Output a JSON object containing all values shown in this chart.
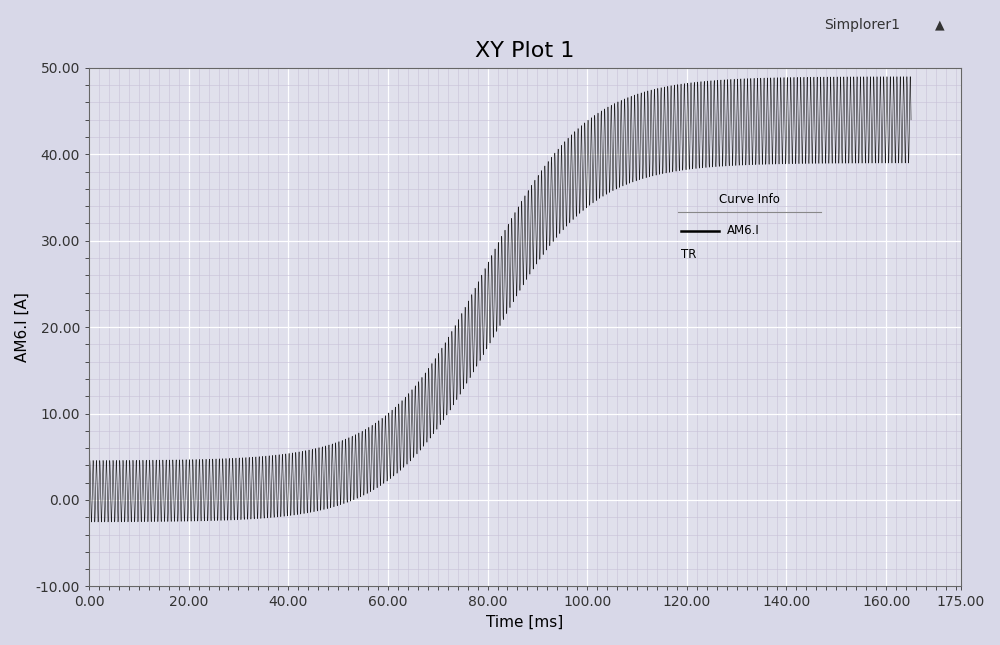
{
  "title": "XY Plot 1",
  "watermark": "Simplorer1",
  "xlabel": "Time [ms]",
  "ylabel": "AM6.I [A]",
  "xlim": [
    0,
    175
  ],
  "ylim": [
    -10,
    50
  ],
  "xticks": [
    0.0,
    20.0,
    40.0,
    60.0,
    80.0,
    100.0,
    120.0,
    140.0,
    160.0,
    175.0
  ],
  "xtick_labels": [
    "0.00",
    "20.00",
    "40.00",
    "60.00",
    "80.00",
    "100.00",
    "120.00",
    "140.00",
    "160.00",
    "175.00"
  ],
  "yticks": [
    -10.0,
    0.0,
    10.0,
    20.0,
    30.0,
    40.0,
    50.0
  ],
  "ytick_labels": [
    "-10.00",
    "0.00",
    "10.00",
    "20.00",
    "30.00",
    "40.00",
    "50.00"
  ],
  "bg_color": "#d8d8e8",
  "plot_bg_color": "#e0e0ec",
  "grid_major_color": "#ffffff",
  "grid_minor_color": "#c8c0d8",
  "curve_color": "#1a1a1a",
  "legend_title": "Curve Info",
  "legend_line_label": "AM6.I",
  "legend_sub_label": "TR",
  "title_fontsize": 16,
  "axis_label_fontsize": 11,
  "tick_fontsize": 10,
  "t_total_ms": 165,
  "envelope_mean_start": 1.0,
  "envelope_mean_end": 44.0,
  "envelope_mean_t_inflection": 80,
  "envelope_mean_k": 0.1,
  "oscillation_freq_per_ms": 1.5,
  "oscillation_amplitude_base": 3.5,
  "oscillation_amplitude_scale": 0.06
}
